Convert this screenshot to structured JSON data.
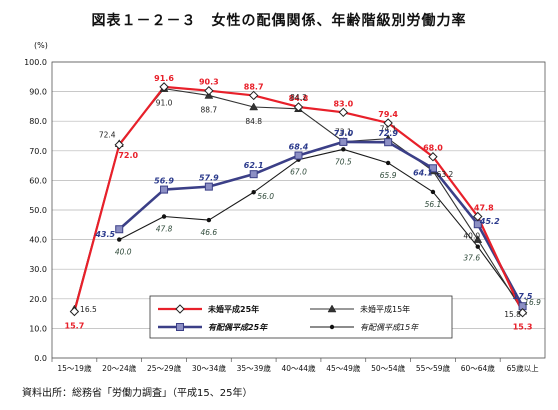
{
  "chart_data": {
    "type": "line",
    "title": "図表１－２－３　女性の配偶関係、年齢階級別労働力率",
    "ylabel": "(%)",
    "xlabel": "",
    "ylim": [
      0,
      100
    ],
    "yticks": [
      "0.0",
      "10.0",
      "20.0",
      "30.0",
      "40.0",
      "50.0",
      "60.0",
      "70.0",
      "80.0",
      "90.0",
      "100.0"
    ],
    "categories": [
      "15～19歳",
      "20～24歳",
      "25～29歳",
      "30～34歳",
      "35～39歳",
      "40～44歳",
      "45～49歳",
      "50～54歳",
      "55～59歳",
      "60～64歳",
      "65歳以上"
    ],
    "grid": true,
    "legend_position": "bottom-center",
    "source": "資料出所：総務省「労働力調査」（平成15、25年）",
    "series": [
      {
        "name": "未婚平成25年",
        "color": "#e8202a",
        "marker": "diamond-open",
        "labels": [
          "15.7",
          "72.0",
          "91.6",
          "90.3",
          "88.7",
          "84.8",
          "83.0",
          "79.4",
          "68.0",
          "47.8",
          "15.3"
        ],
        "values": [
          15.7,
          72.0,
          91.6,
          90.3,
          88.7,
          84.8,
          83.0,
          79.4,
          68.0,
          47.8,
          15.3
        ]
      },
      {
        "name": "未婚平成15年",
        "color": "#333333",
        "marker": "triangle",
        "labels": [
          "16.5",
          "72.4",
          "91.0",
          "88.7",
          "84.8",
          "84.2",
          "73.1",
          "74.1",
          "63.2",
          "40.0",
          "15.8"
        ],
        "values": [
          16.5,
          72.4,
          91.0,
          88.7,
          84.8,
          84.2,
          73.1,
          74.1,
          63.2,
          40.0,
          15.8
        ]
      },
      {
        "name": "有配偶平成25年",
        "color": "#3b3f87",
        "marker": "square",
        "labels": [
          "",
          "43.5",
          "56.9",
          "57.9",
          "62.1",
          "68.4",
          "73.0",
          "72.9",
          "64.1",
          "45.2",
          "17.5"
        ],
        "values": [
          null,
          43.5,
          56.9,
          57.9,
          62.1,
          68.4,
          73.0,
          72.9,
          64.1,
          45.2,
          17.5
        ]
      },
      {
        "name": "有配偶平成15年",
        "color": "#1a1a1a",
        "marker": "dot",
        "labels": [
          "",
          "40.0",
          "47.8",
          "46.6",
          "56.0",
          "67.0",
          "70.5",
          "65.9",
          "56.1",
          "37.6",
          "16.9"
        ],
        "values": [
          null,
          40.0,
          47.8,
          46.6,
          56.0,
          67.0,
          70.5,
          65.9,
          56.1,
          37.6,
          16.9
        ]
      }
    ]
  }
}
